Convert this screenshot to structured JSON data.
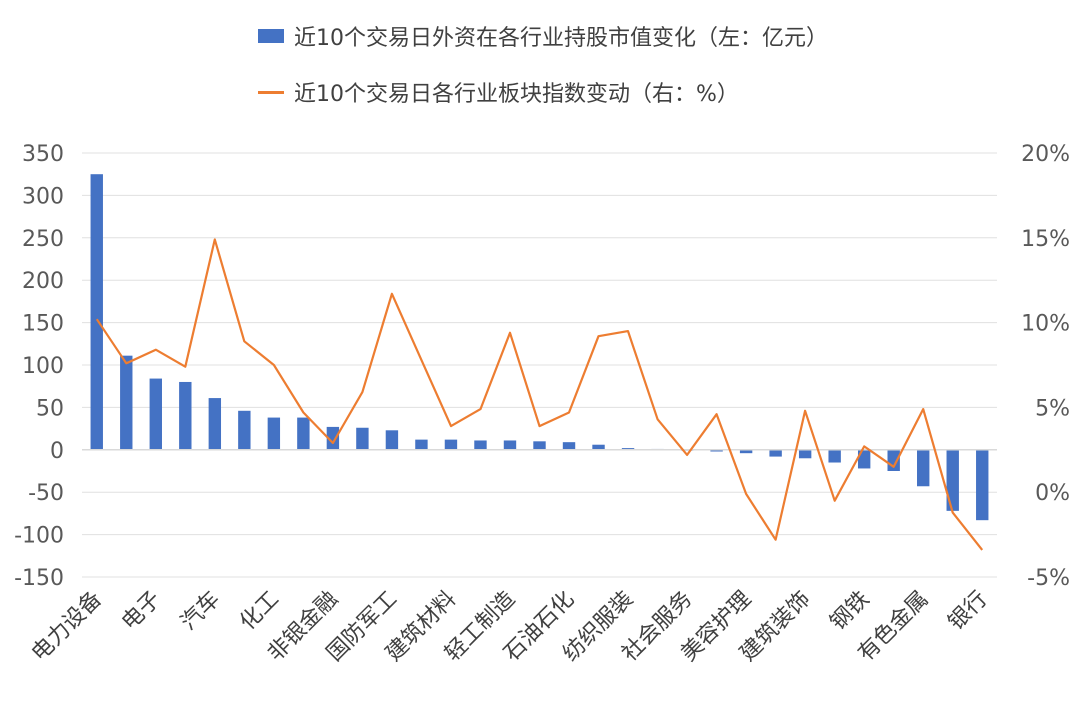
{
  "chart_data": {
    "type": "bar",
    "categories": [
      "电力设备",
      "",
      "电子",
      "",
      "汽车",
      "",
      "化工",
      "",
      "非银金融",
      "",
      "国防军工",
      "",
      "建筑材料",
      "",
      "轻工制造",
      "",
      "石油石化",
      "",
      "纺织服装",
      "",
      "社会服务",
      "",
      "美容护理",
      "",
      "建筑装饰",
      "",
      "钢铁",
      "",
      "有色金属",
      "",
      "银行"
    ],
    "series": [
      {
        "name": "近10个交易日外资在各行业持股市值变化（左：亿元）",
        "type": "bar",
        "axis": "left",
        "color": "#4472C4",
        "values": [
          325,
          111,
          84,
          80,
          61,
          46,
          38,
          38,
          27,
          26,
          23,
          12,
          12,
          11,
          11,
          10,
          9,
          6,
          2,
          1,
          -1,
          -2,
          -4,
          -8,
          -10,
          -15,
          -22,
          -25,
          -43,
          -72,
          -83
        ]
      },
      {
        "name": "近10个交易日各行业板块指数变动（右：%）",
        "type": "line",
        "axis": "right",
        "color": "#ED7D31",
        "values": [
          10.2,
          7.6,
          8.4,
          7.4,
          14.9,
          8.9,
          7.5,
          4.7,
          2.9,
          5.9,
          11.7,
          7.8,
          3.9,
          4.9,
          9.4,
          3.9,
          4.7,
          9.2,
          9.5,
          4.3,
          2.2,
          4.6,
          -0.1,
          -2.8,
          4.8,
          -0.5,
          2.7,
          1.5,
          4.9,
          -1.2,
          -3.4
        ]
      }
    ],
    "y_left": {
      "min": -150,
      "max": 350,
      "ticks": [
        350,
        300,
        250,
        200,
        150,
        100,
        50,
        0,
        -50,
        -100,
        -150
      ]
    },
    "y_right": {
      "min": -5,
      "max": 20,
      "ticks": [
        "20%",
        "15%",
        "10%",
        "5%",
        "0%",
        "-5%"
      ]
    },
    "grid": true,
    "legend_position": "top"
  }
}
